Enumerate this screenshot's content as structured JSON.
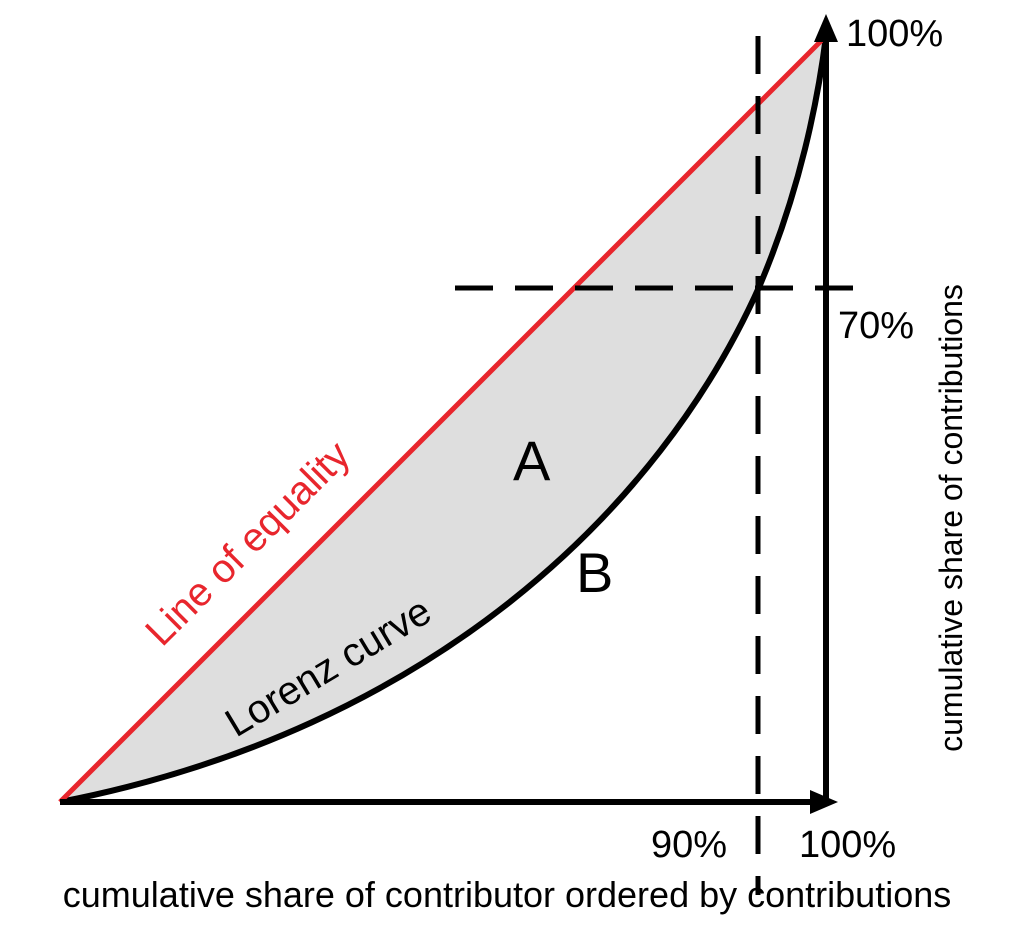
{
  "diagram": {
    "labels": {
      "line_of_equality": "Line of equality",
      "lorenz_curve": "Lorenz curve",
      "area_a": "A",
      "area_b": "B"
    },
    "y_axis": {
      "label": "cumulative share of contributions",
      "ticks": [
        "100%",
        "70%"
      ]
    },
    "x_axis": {
      "label": "cumulative share of contributor ordered by contributions",
      "ticks": [
        "90%",
        "100%"
      ]
    },
    "colors": {
      "equality_line": "#e8262d",
      "lorenz_curve": "#000000",
      "shaded_area": "#dedede",
      "axes": "#000000"
    }
  }
}
